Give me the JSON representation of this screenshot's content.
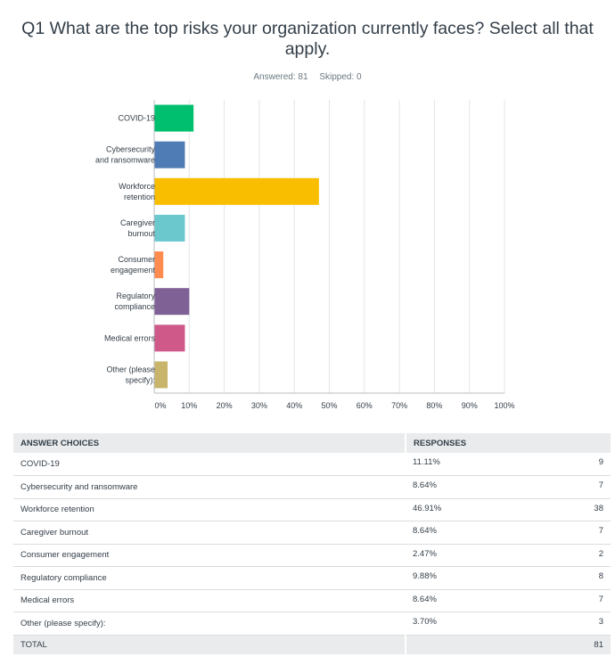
{
  "question": {
    "title": "Q1 What are the top risks your organization currently faces? Select all that apply.",
    "answered_label": "Answered: 81",
    "skipped_label": "Skipped: 0"
  },
  "chart_data": {
    "type": "bar",
    "orientation": "horizontal",
    "categories": [
      [
        "COVID-19"
      ],
      [
        "Cybersecurity",
        "and ransomware"
      ],
      [
        "Workforce",
        "retention"
      ],
      [
        "Caregiver",
        "burnout"
      ],
      [
        "Consumer",
        "engagement"
      ],
      [
        "Regulatory",
        "compliance"
      ],
      [
        "Medical errors"
      ],
      [
        "Other (please",
        "specify):"
      ]
    ],
    "values": [
      11.11,
      8.64,
      46.91,
      8.64,
      2.47,
      9.88,
      8.64,
      3.7
    ],
    "colors": [
      "#00bf6f",
      "#507cb6",
      "#f9be00",
      "#6bc8cd",
      "#ff8b4f",
      "#7f6195",
      "#cf5a8a",
      "#c8b56b"
    ],
    "xlim": [
      0,
      100
    ],
    "ticks": [
      0,
      10,
      20,
      30,
      40,
      50,
      60,
      70,
      80,
      90,
      100
    ],
    "tick_labels": [
      "0%",
      "10%",
      "20%",
      "30%",
      "40%",
      "50%",
      "60%",
      "70%",
      "80%",
      "90%",
      "100%"
    ],
    "grid": true
  },
  "table": {
    "headers": {
      "choices": "ANSWER CHOICES",
      "responses": "RESPONSES"
    },
    "rows": [
      {
        "choice": "COVID-19",
        "percent": "11.11%",
        "count": "9"
      },
      {
        "choice": "Cybersecurity and ransomware",
        "percent": "8.64%",
        "count": "7"
      },
      {
        "choice": "Workforce retention",
        "percent": "46.91%",
        "count": "38"
      },
      {
        "choice": "Caregiver burnout",
        "percent": "8.64%",
        "count": "7"
      },
      {
        "choice": "Consumer engagement",
        "percent": "2.47%",
        "count": "2"
      },
      {
        "choice": "Regulatory compliance",
        "percent": "9.88%",
        "count": "8"
      },
      {
        "choice": "Medical errors",
        "percent": "8.64%",
        "count": "7"
      },
      {
        "choice": "Other (please specify):",
        "percent": "3.70%",
        "count": "3"
      }
    ],
    "total_label": "TOTAL",
    "total_count": "81"
  }
}
